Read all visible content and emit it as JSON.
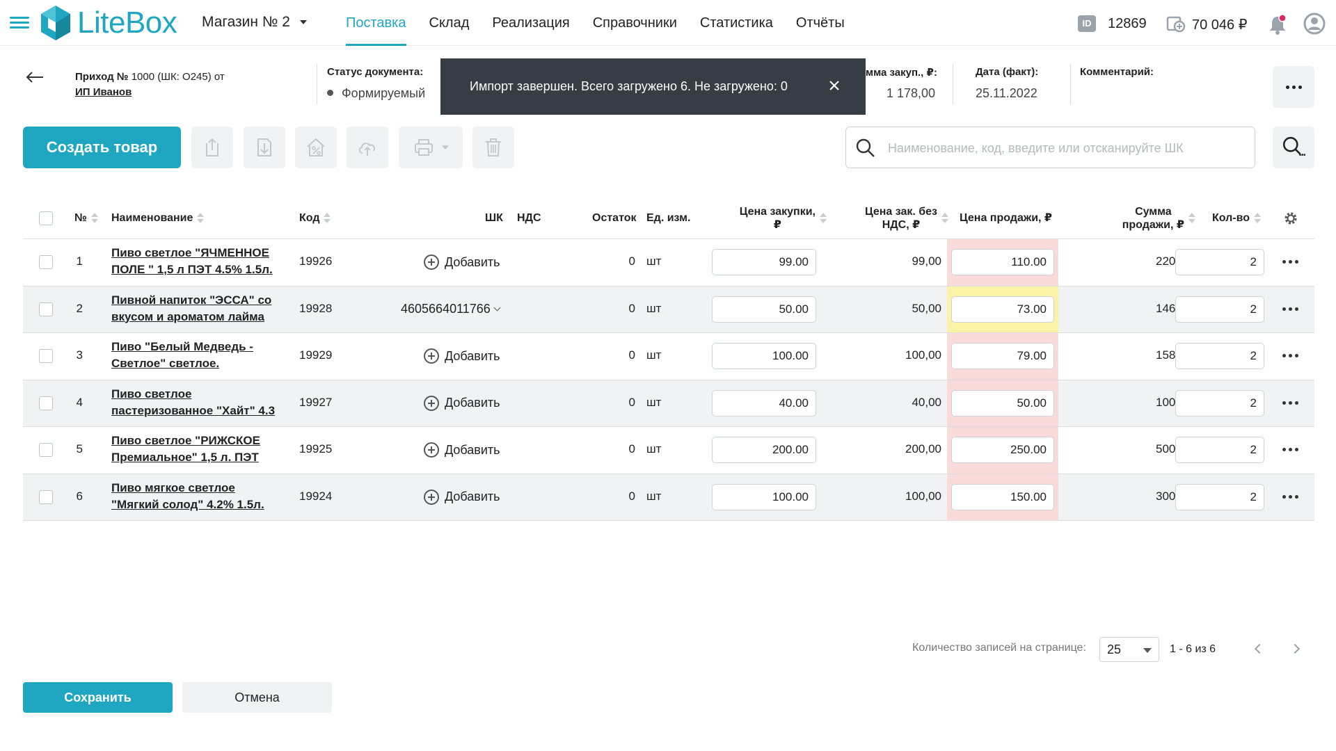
{
  "header": {
    "logo_text": "LiteBox",
    "store": "Магазин № 2",
    "nav": [
      {
        "label": "Поставка",
        "active": true
      },
      {
        "label": "Склад"
      },
      {
        "label": "Реализация"
      },
      {
        "label": "Справочники"
      },
      {
        "label": "Статистика"
      },
      {
        "label": "Отчёты"
      }
    ],
    "id_badge": "ID",
    "user_id": "12869",
    "balance": "70 046 ₽"
  },
  "document": {
    "title_bold": "Приход № ",
    "title_rest": "1000 (ШК: O245) от",
    "supplier": "ИП Иванов",
    "status_label": "Статус документа:",
    "status_value": "Формируемый",
    "sum_label": "мма закуп., ₽:",
    "sum_value": "1 178,00",
    "date_label": "Дата (факт):",
    "date_value": "25.11.2022",
    "comment_label": "Комментарий:"
  },
  "toast": {
    "message": "Импорт завершен. Всего загружено 6. Не загружено: 0"
  },
  "toolbar": {
    "create_label": "Создать товар",
    "search_placeholder": "Наименование, код, введите или отсканируйте ШК"
  },
  "table": {
    "headers": {
      "num": "№",
      "name": "Наименование",
      "code": "Код",
      "barcode": "ШК",
      "vat": "НДС",
      "stock": "Остаток",
      "unit": "Ед. изм.",
      "purchase_price_1": "Цена закупки,",
      "purchase_price_2": "₽",
      "purchase_novat_1": "Цена зак. без",
      "purchase_novat_2": "НДС, ₽",
      "sale_price": "Цена продажи, ₽",
      "sale_sum_1": "Сумма",
      "sale_sum_2": "продажи, ₽",
      "qty": "Кол-во"
    },
    "add_label": "Добавить",
    "rows": [
      {
        "num": "1",
        "name1": "Пиво светлое \"ЯЧМЕННОЕ",
        "name2": "ПОЛЕ \" 1,5 л ПЭТ 4.5% 1.5л.",
        "code": "19926",
        "barcode": "",
        "stock": "0",
        "unit": "шт",
        "purchase": "99.00",
        "purchase_novat": "99,00",
        "sale": "110.00",
        "sale_hl": "red",
        "sum": "220,00",
        "qty": "2"
      },
      {
        "num": "2",
        "name1": "Пивной напиток \"ЭССА\" со",
        "name2": "вкусом и ароматом лайма",
        "code": "19928",
        "barcode": "4605664011766",
        "stock": "0",
        "unit": "шт",
        "purchase": "50.00",
        "purchase_novat": "50,00",
        "sale": "73.00",
        "sale_hl": "yellow",
        "sum": "146,00",
        "qty": "2"
      },
      {
        "num": "3",
        "name1": "Пиво \"Белый Медведь -",
        "name2": "Светлое\" светлое.",
        "code": "19929",
        "barcode": "",
        "stock": "0",
        "unit": "шт",
        "purchase": "100.00",
        "purchase_novat": "100,00",
        "sale": "79.00",
        "sale_hl": "red",
        "sum": "158,00",
        "qty": "2"
      },
      {
        "num": "4",
        "name1": "Пиво светлое",
        "name2": "пастеризованное \"Хайт\" 4.3",
        "code": "19927",
        "barcode": "",
        "stock": "0",
        "unit": "шт",
        "purchase": "40.00",
        "purchase_novat": "40,00",
        "sale": "50.00",
        "sale_hl": "red",
        "sum": "100,00",
        "qty": "2"
      },
      {
        "num": "5",
        "name1": "Пиво светлое \"РИЖСКОЕ",
        "name2": "Премиальное\" 1,5 л. ПЭТ",
        "code": "19925",
        "barcode": "",
        "stock": "0",
        "unit": "шт",
        "purchase": "200.00",
        "purchase_novat": "200,00",
        "sale": "250.00",
        "sale_hl": "red",
        "sum": "500,00",
        "qty": "2"
      },
      {
        "num": "6",
        "name1": "Пиво мягкое светлое",
        "name2": "\"Мягкий солод\" 4.2% 1.5л.",
        "code": "19924",
        "barcode": "",
        "stock": "0",
        "unit": "шт",
        "purchase": "100.00",
        "purchase_novat": "100,00",
        "sale": "150.00",
        "sale_hl": "red",
        "sum": "300,00",
        "qty": "2"
      }
    ]
  },
  "pagination": {
    "label": "Количество записей на странице:",
    "page_size": "25",
    "range": "1 - 6 из 6"
  },
  "footer": {
    "save": "Сохранить",
    "cancel": "Отмена"
  },
  "colors": {
    "accent": "#1fa7c2",
    "toast_bg": "#363d45",
    "highlight_red": "#fbdada",
    "highlight_yellow": "#fdf3a7"
  }
}
